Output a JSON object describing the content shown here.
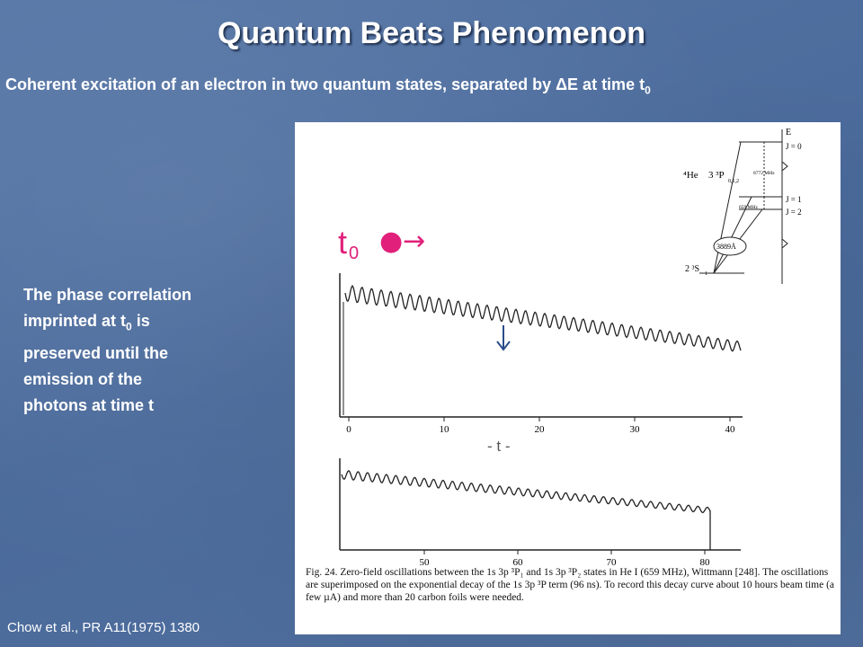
{
  "title": "Quantum Beats Phenomenon",
  "subtitle": {
    "text": "Coherent excitation of an electron in two quantum states, separated by ΔE at time t",
    "subscript": "0"
  },
  "side_text": {
    "line1": "The phase correlation",
    "line2a": "imprinted at t",
    "line2sub": "0",
    "line2b": " is",
    "line3": "preserved until the",
    "line4": "emission of the",
    "line5": "photons at time t"
  },
  "citation": "Chow et al., PR A11(1975) 1380",
  "figure": {
    "t0_label": "t",
    "t0_sub": "0",
    "dot_arrow": "●→",
    "t_label": "- t -",
    "energy_diagram": {
      "axis": "E",
      "atom": "⁴He",
      "term": "3 ³P",
      "term_sub": "0,1,2",
      "j0": "J = 0",
      "j1": "J = 1",
      "j2": "J = 2",
      "split1": "8772 MHz",
      "split2": "659 MHz",
      "wavelength": "3889Å",
      "ground": "2 ³S",
      "ground_sub": "1"
    },
    "top_axis": {
      "ticks": [
        "0",
        "10",
        "20",
        "30",
        "40"
      ]
    },
    "bottom_axis": {
      "ticks": [
        "50",
        "60",
        "70",
        "80"
      ]
    },
    "caption": "Fig. 24. Zero-field oscillations between the 1s 3p ³P₁ and 1s 3p ³P₂ states in He I (659 MHz), Wittmann [248]. The oscillations are superimposed on the exponential decay of the 1s 3p ³P term (96 ns). To record this decay curve about 10 hours beam time (a few µA) and more than 20 carbon foils were needed."
  },
  "colors": {
    "background": "#4e6fa0",
    "t0_label": "#e0207a",
    "arrow": "#2a4c8a"
  }
}
